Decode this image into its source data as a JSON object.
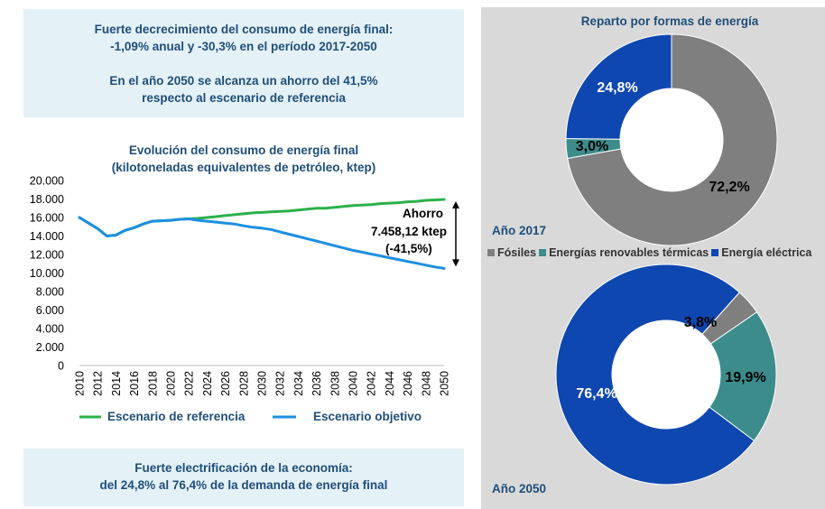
{
  "summary": {
    "line1": "Fuerte decrecimiento del consumo de energía final:",
    "line2": "-1,09% anual y -30,3% en el período 2017-2050",
    "line3": "En el año 2050 se alcanza un ahorro del 41,5%",
    "line4": "respecto al escenario de referencia"
  },
  "electrification": {
    "line1": "Fuerte electrificación de la economía:",
    "line2": "del 24,8% al 76,4% de la demanda de energía final"
  },
  "colors": {
    "reference": "#2db04b",
    "objective": "#1e8fe0",
    "fosiles": "#7f7f7f",
    "renovables": "#3d8c8c",
    "electrica": "#0f47b0"
  },
  "chart_data": [
    {
      "type": "line",
      "title": "Evolución del consumo de energía final",
      "subtitle": "(kilotoneladas equivalentes de petróleo, ktep)",
      "x": [
        2010,
        2011,
        2012,
        2013,
        2014,
        2015,
        2016,
        2017,
        2018,
        2019,
        2020,
        2021,
        2022,
        2023,
        2024,
        2025,
        2026,
        2027,
        2028,
        2029,
        2030,
        2031,
        2032,
        2033,
        2034,
        2035,
        2036,
        2037,
        2038,
        2039,
        2040,
        2041,
        2042,
        2043,
        2044,
        2045,
        2046,
        2047,
        2048,
        2049,
        2050
      ],
      "x_ticks": [
        "2010",
        "2012",
        "2014",
        "2016",
        "2018",
        "2020",
        "2022",
        "2024",
        "2026",
        "2028",
        "2030",
        "2032",
        "2034",
        "2036",
        "2038",
        "2040",
        "2042",
        "2044",
        "2046",
        "2048",
        "2050"
      ],
      "y_ticks": [
        "0",
        "2.000",
        "4.000",
        "6.000",
        "8.000",
        "10.000",
        "12.000",
        "14.000",
        "16.000",
        "18.000",
        "20.000"
      ],
      "ylim": [
        0,
        20000
      ],
      "series": [
        {
          "name": "Escenario de referencia",
          "values": [
            16000,
            15400,
            14800,
            14000,
            14100,
            14600,
            14900,
            15300,
            15600,
            15650,
            15700,
            15800,
            15850,
            15900,
            16000,
            16100,
            16200,
            16300,
            16400,
            16500,
            16550,
            16600,
            16650,
            16700,
            16800,
            16900,
            17000,
            17000,
            17100,
            17200,
            17300,
            17350,
            17400,
            17500,
            17550,
            17600,
            17700,
            17750,
            17850,
            17900,
            17950
          ]
        },
        {
          "name": "Escenario objetivo",
          "values": [
            16000,
            15400,
            14800,
            14000,
            14100,
            14600,
            14900,
            15300,
            15600,
            15650,
            15700,
            15800,
            15850,
            15700,
            15600,
            15500,
            15400,
            15300,
            15100,
            14950,
            14850,
            14700,
            14450,
            14200,
            13950,
            13700,
            13450,
            13200,
            12950,
            12700,
            12450,
            12250,
            12050,
            11850,
            11650,
            11450,
            11250,
            11050,
            10850,
            10650,
            10500
          ]
        }
      ],
      "annotation": {
        "line1": "Ahorro",
        "line2": "7.458,12 ktep",
        "line3": "(-41,5%)"
      },
      "legend_position": "bottom"
    },
    {
      "type": "pie",
      "title": "Reparto por formas de energía",
      "legend": [
        "Fósiles",
        "Energías renovables térmicas",
        "Energía eléctrica"
      ],
      "charts": [
        {
          "label": "Año 2017",
          "slices": [
            {
              "name": "Fósiles",
              "value": 72.2,
              "label": "72,2%"
            },
            {
              "name": "Energías renovables térmicas",
              "value": 3.0,
              "label": "3,0%"
            },
            {
              "name": "Energía eléctrica",
              "value": 24.8,
              "label": "24,8%"
            }
          ]
        },
        {
          "label": "Año 2050",
          "slices": [
            {
              "name": "Fósiles",
              "value": 3.8,
              "label": "3,8%"
            },
            {
              "name": "Energías renovables térmicas",
              "value": 19.9,
              "label": "19,9%"
            },
            {
              "name": "Energía eléctrica",
              "value": 76.4,
              "label": "76,4%"
            }
          ]
        }
      ]
    }
  ]
}
